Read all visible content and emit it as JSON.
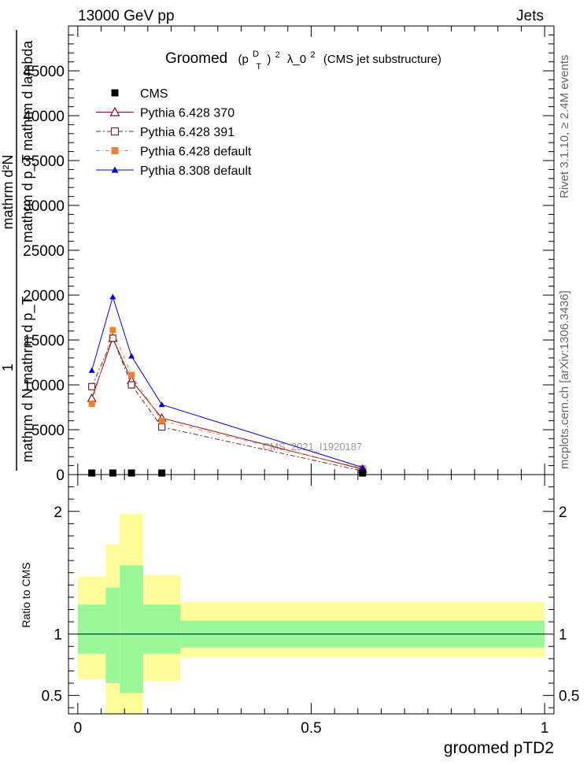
{
  "header": {
    "left": "13000 GeV pp",
    "right": "Jets"
  },
  "side_labels": {
    "rivet": "Rivet 3.1.10, ≥ 2.4M events",
    "mcplots": "mcplots.cern.ch [arXiv:1306.3436]"
  },
  "chart_data": {
    "type": "line",
    "title": {
      "prefix": "Groomed",
      "p": "(p",
      "sup": "D",
      "sub": "T",
      "close": ")",
      "pow": "2",
      "lambda": "λ_0",
      "lambda_pow": "2",
      "suffix": "(CMS jet substructure)"
    },
    "ylabel_lines": [
      "mathrm d²N",
      "mathrm d p_T mathrm d lambda",
      "1",
      "mathrm d N mathrm d p_T"
    ],
    "xlabel": "groomed pTD2",
    "watermark": "CMS_2021_I1920187",
    "xlim": [
      -0.02,
      1.02
    ],
    "ylim": [
      0,
      50000
    ],
    "y_ticks": [
      0,
      5000,
      10000,
      15000,
      20000,
      25000,
      30000,
      35000,
      40000,
      45000
    ],
    "y_tick_labels": [
      "0",
      "5000",
      "10000",
      "15000",
      "20000",
      "25000",
      "30000",
      "35000",
      "40000",
      "45000"
    ],
    "x_ticks": [
      0,
      0.5,
      1
    ],
    "x_tick_labels": [
      "0",
      "0.5",
      "1"
    ],
    "series": [
      {
        "name": "CMS",
        "color": "#000000",
        "marker": "square-filled",
        "x": [
          0.03,
          0.075,
          0.115,
          0.18,
          0.61
        ],
        "y": [
          0,
          0,
          0,
          0,
          0
        ]
      },
      {
        "name": "Pythia 6.428 370",
        "color": "#7a0e1e",
        "marker": "triangle-open",
        "dash": "",
        "x": [
          0.03,
          0.075,
          0.115,
          0.18,
          0.61
        ],
        "y": [
          8500,
          15200,
          10500,
          6300,
          600
        ]
      },
      {
        "name": "Pythia 6.428 391",
        "color": "#6a2a3c",
        "marker": "square-open",
        "dash": "6,3,2,3",
        "x": [
          0.03,
          0.075,
          0.115,
          0.18,
          0.61
        ],
        "y": [
          9800,
          15200,
          10000,
          5300,
          400
        ]
      },
      {
        "name": "Pythia 6.428 default",
        "color": "#f08030",
        "marker": "square-filled",
        "dash": "5,3,1,3",
        "x": [
          0.03,
          0.075,
          0.115,
          0.18,
          0.61
        ],
        "y": [
          7900,
          16100,
          11100,
          6000,
          700
        ]
      },
      {
        "name": "Pythia 8.308 default",
        "color": "#0000cc",
        "marker": "triangle-filled",
        "dash": "",
        "x": [
          0.03,
          0.075,
          0.115,
          0.18,
          0.61
        ],
        "y": [
          11600,
          19800,
          13200,
          7800,
          800
        ]
      }
    ],
    "ratio": {
      "ylabel": "Ratio to CMS",
      "ylim": [
        0.35,
        2.3
      ],
      "y_ticks": [
        0.5,
        1,
        2
      ],
      "y_tick_labels": [
        "0.5",
        "1",
        "2"
      ],
      "bins": [
        {
          "x0": 0.0,
          "x1": 0.06,
          "inner": [
            0.84,
            1.24
          ],
          "outer": [
            0.63,
            1.47
          ]
        },
        {
          "x0": 0.06,
          "x1": 0.09,
          "inner": [
            0.6,
            1.38
          ],
          "outer": [
            0.1,
            1.73
          ]
        },
        {
          "x0": 0.09,
          "x1": 0.14,
          "inner": [
            0.52,
            1.56
          ],
          "outer": [
            0.1,
            1.98
          ]
        },
        {
          "x0": 0.14,
          "x1": 0.22,
          "inner": [
            0.84,
            1.24
          ],
          "outer": [
            0.62,
            1.48
          ]
        },
        {
          "x0": 0.22,
          "x1": 1.0,
          "inner": [
            0.89,
            1.11
          ],
          "outer": [
            0.81,
            1.26
          ]
        }
      ]
    },
    "colors": {
      "band_inner": "#99f799",
      "band_outer": "#fffc99"
    },
    "grid": false,
    "legend_position": "top-left"
  }
}
